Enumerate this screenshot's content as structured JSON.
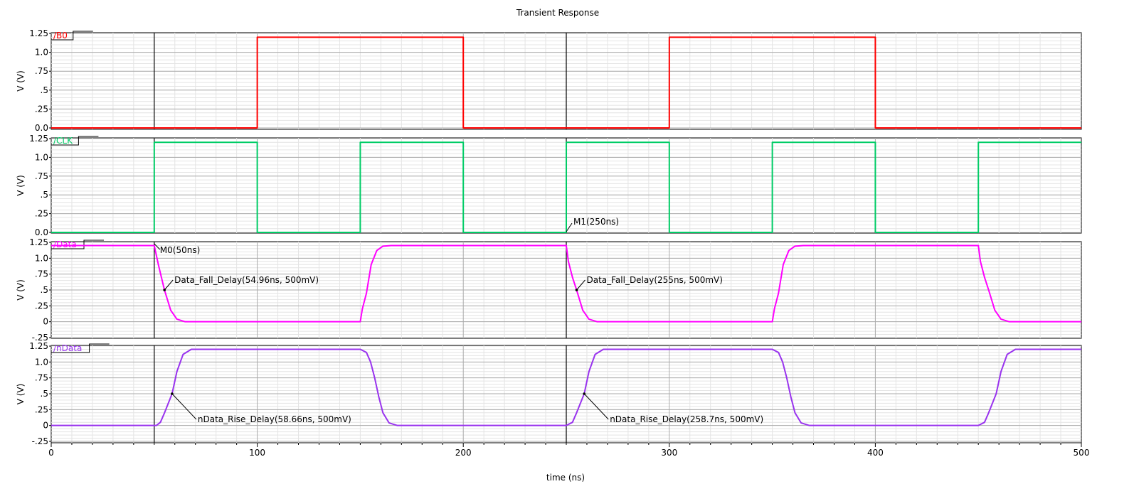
{
  "chart_data": {
    "type": "line",
    "title": "Transient Response",
    "xlabel": "time (ns)",
    "xlim": [
      0,
      500
    ],
    "x_ticks": [
      "0",
      "100",
      "200",
      "300",
      "400",
      "500"
    ],
    "colors": {
      "B0": "#ff0000",
      "CLK": "#00cc66",
      "Data": "#ff00ff",
      "nData": "#9933ee",
      "grid_major": "#aaaaaa",
      "grid_minor": "#e4e4e4"
    },
    "panels": [
      {
        "name": "/B0",
        "ylabel": "V (V)",
        "ylim": [
          0,
          1.25
        ],
        "y_ticks": [
          "0.0",
          ".25",
          ".5",
          ".75",
          "1.0",
          "1.25"
        ],
        "y_tick_values": [
          0,
          0.25,
          0.5,
          0.75,
          1.0,
          1.25
        ],
        "color": "#ff0000",
        "x": [
          0,
          100,
          100.01,
          200,
          200.01,
          300,
          300.01,
          400,
          400.01,
          500
        ],
        "y": [
          0,
          0,
          1.2,
          1.2,
          0,
          0,
          1.2,
          1.2,
          0,
          0
        ]
      },
      {
        "name": "/CLK",
        "ylabel": "V (V)",
        "ylim": [
          0,
          1.25
        ],
        "y_ticks": [
          "0.0",
          ".25",
          ".5",
          ".75",
          "1.0",
          "1.25"
        ],
        "y_tick_values": [
          0,
          0.25,
          0.5,
          0.75,
          1.0,
          1.25
        ],
        "color": "#00cc66",
        "x": [
          0,
          50,
          50.01,
          100,
          100.01,
          150,
          150.01,
          200,
          200.01,
          250,
          250.01,
          300,
          300.01,
          350,
          350.01,
          400,
          400.01,
          450,
          450.01,
          500
        ],
        "y": [
          0,
          0,
          1.2,
          1.2,
          0,
          0,
          1.2,
          1.2,
          0,
          0,
          1.2,
          1.2,
          0,
          0,
          1.2,
          1.2,
          0,
          0,
          1.2,
          1.2
        ]
      },
      {
        "name": "/Data",
        "ylabel": "V (V)",
        "ylim": [
          -0.25,
          1.25
        ],
        "y_ticks": [
          "-.25",
          "0",
          ".25",
          ".5",
          ".75",
          "1.0",
          "1.25"
        ],
        "y_tick_values": [
          -0.25,
          0,
          0.25,
          0.5,
          0.75,
          1.0,
          1.25
        ],
        "color": "#ff00ff",
        "x": [
          0,
          50,
          52,
          54.96,
          58,
          61,
          65,
          150,
          151,
          153,
          155.3,
          158,
          161,
          165,
          250,
          251,
          253,
          255,
          258,
          261,
          265,
          350,
          351,
          353,
          355.3,
          358,
          361,
          365,
          450,
          451,
          453,
          455,
          458,
          461,
          465,
          500
        ],
        "y": [
          1.2,
          1.2,
          0.9,
          0.5,
          0.18,
          0.04,
          0,
          0,
          0.2,
          0.45,
          0.9,
          1.12,
          1.19,
          1.2,
          1.2,
          0.95,
          0.7,
          0.5,
          0.18,
          0.04,
          0,
          0,
          0.2,
          0.45,
          0.9,
          1.12,
          1.19,
          1.2,
          1.2,
          0.95,
          0.7,
          0.5,
          0.18,
          0.04,
          0,
          0
        ]
      },
      {
        "name": "/nData",
        "ylabel": "V (V)",
        "ylim": [
          -0.25,
          1.25
        ],
        "y_ticks": [
          "-.25",
          "0",
          ".25",
          ".5",
          ".75",
          "1.0",
          "1.25"
        ],
        "y_tick_values": [
          -0.25,
          0,
          0.25,
          0.5,
          0.75,
          1.0,
          1.25
        ],
        "color": "#9933ee",
        "x": [
          0,
          51,
          53,
          55,
          58.66,
          61,
          64,
          68,
          150,
          153,
          155,
          157,
          159,
          161,
          164,
          168,
          250,
          253,
          255,
          258.7,
          261,
          264,
          268,
          350,
          353,
          355,
          357,
          359,
          361,
          364,
          368,
          450,
          453,
          455,
          458.66,
          461,
          464,
          468,
          500
        ],
        "y": [
          0,
          0,
          0.05,
          0.2,
          0.5,
          0.85,
          1.12,
          1.2,
          1.2,
          1.15,
          1.0,
          0.75,
          0.45,
          0.2,
          0.04,
          0,
          0,
          0.05,
          0.2,
          0.5,
          0.85,
          1.12,
          1.2,
          1.2,
          1.15,
          1.0,
          0.75,
          0.45,
          0.2,
          0.04,
          0,
          0,
          0.05,
          0.2,
          0.5,
          0.85,
          1.12,
          1.2,
          1.2
        ]
      }
    ],
    "markers": [
      {
        "label": "M0(50ns)",
        "x": 50
      },
      {
        "label": "M1(250ns)",
        "x": 250
      }
    ],
    "annotations": [
      {
        "panel": 2,
        "label": "Data_Fall_Delay(54.96ns, 500mV)",
        "x": 54.96,
        "y": 0.5
      },
      {
        "panel": 2,
        "label": "Data_Fall_Delay(255ns, 500mV)",
        "x": 255,
        "y": 0.5
      },
      {
        "panel": 3,
        "label": "nData_Rise_Delay(58.66ns, 500mV)",
        "x": 58.66,
        "y": 0.5
      },
      {
        "panel": 3,
        "label": "nData_Rise_Delay(258.7ns, 500mV)",
        "x": 258.7,
        "y": 0.5
      }
    ]
  }
}
